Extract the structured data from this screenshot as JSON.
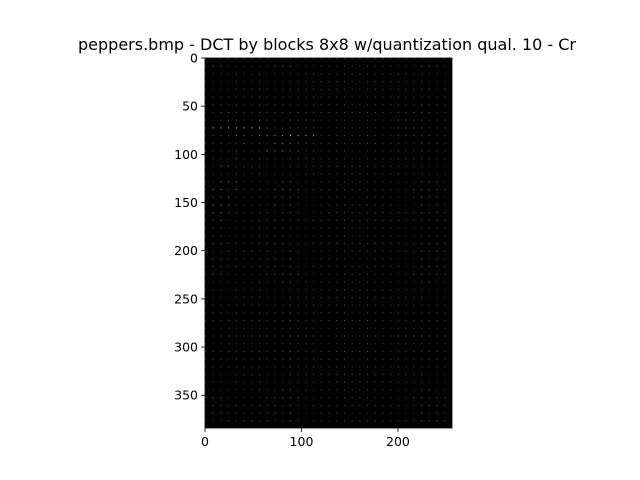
{
  "chart_data": {
    "type": "heatmap",
    "title": "peppers.bmp - DCT by blocks 8x8  w/quantization qual. 10 - Cr",
    "xlabel": "",
    "ylabel": "",
    "colormap": "gray",
    "image_size": {
      "width": 256,
      "height": 384
    },
    "block_size": 8,
    "xlim": [
      0,
      256
    ],
    "ylim": [
      384,
      0
    ],
    "x_ticks": [
      0,
      100,
      200
    ],
    "y_ticks": [
      0,
      50,
      100,
      150,
      200,
      250,
      300,
      350
    ],
    "x_tick_labels": [
      "0",
      "100",
      "200"
    ],
    "y_tick_labels": [
      "0",
      "50",
      "100",
      "150",
      "200",
      "250",
      "300",
      "350"
    ],
    "grid": false,
    "bright_coefficients": [
      [
        1,
        9,
        0.95
      ],
      [
        2,
        9,
        0.9
      ],
      [
        3,
        9,
        0.9
      ],
      [
        4,
        9,
        0.85
      ],
      [
        5,
        9,
        0.95
      ],
      [
        6,
        9,
        0.9
      ],
      [
        7,
        9,
        0.9
      ],
      [
        4,
        10,
        0.6
      ],
      [
        5,
        10,
        0.55
      ],
      [
        7,
        10,
        0.6
      ],
      [
        8,
        10,
        0.7
      ],
      [
        9,
        10,
        0.65
      ],
      [
        10,
        10,
        0.75
      ],
      [
        11,
        10,
        0.9
      ],
      [
        12,
        10,
        0.8
      ],
      [
        13,
        10,
        0.75
      ],
      [
        14,
        10,
        0.7
      ],
      [
        5,
        11,
        0.55
      ],
      [
        9,
        11,
        0.6
      ],
      [
        10,
        11,
        0.6
      ],
      [
        11,
        11,
        0.55
      ],
      [
        0,
        12,
        0.5
      ],
      [
        8,
        12,
        0.65
      ],
      [
        9,
        12,
        0.6
      ],
      [
        10,
        12,
        0.65
      ],
      [
        12,
        12,
        0.55
      ],
      [
        4,
        13,
        0.6
      ],
      [
        13,
        13,
        0.55
      ],
      [
        2,
        14,
        0.6
      ],
      [
        3,
        14,
        0.55
      ],
      [
        2,
        16,
        0.6
      ],
      [
        3,
        16,
        0.6
      ],
      [
        4,
        16,
        0.6
      ],
      [
        1,
        17,
        0.6
      ],
      [
        2,
        17,
        0.6
      ],
      [
        4,
        17,
        0.6
      ],
      [
        9,
        17,
        0.55
      ],
      [
        10,
        17,
        0.55
      ],
      [
        3,
        18,
        0.6
      ],
      [
        1,
        19,
        0.6
      ],
      [
        2,
        19,
        0.6
      ],
      [
        3,
        19,
        0.55
      ],
      [
        9,
        19,
        0.55
      ],
      [
        1,
        20,
        0.55
      ],
      [
        2,
        20,
        0.6
      ],
      [
        2,
        21,
        0.6
      ]
    ]
  }
}
